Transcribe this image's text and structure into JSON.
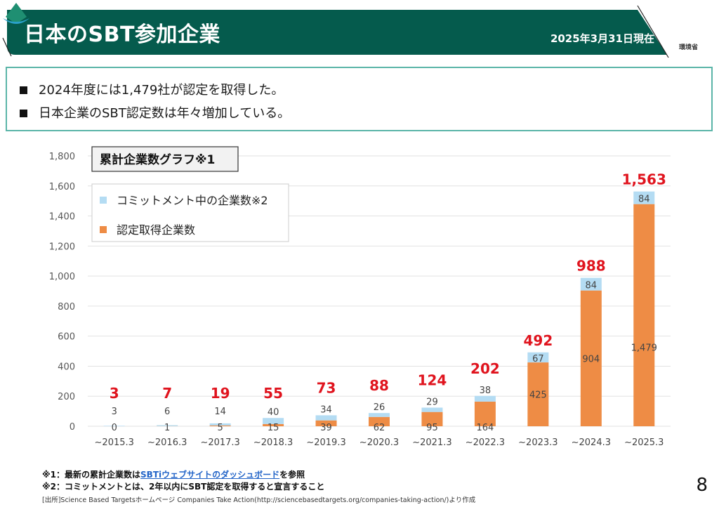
{
  "header": {
    "title": "日本のSBT参加企業",
    "as_of_date": "2025年3月31日現在",
    "logo_text": "環境省",
    "banner_color": "#055b4d"
  },
  "summary": {
    "bullets": [
      "2024年度には1,479社が認定を取得した。",
      "日本企業のSBT認定数は年々増加している。"
    ]
  },
  "chart_data": {
    "type": "bar",
    "stacked": true,
    "title": "累計企業数グラフ※1",
    "xlabel": "",
    "ylabel": "",
    "ylim": [
      0,
      1800
    ],
    "yticks": [
      0,
      200,
      400,
      600,
      800,
      1000,
      1200,
      1400,
      1600,
      1800
    ],
    "ytick_labels": [
      "0",
      "200",
      "400",
      "600",
      "800",
      "1,000",
      "1,200",
      "1,400",
      "1,600",
      "1,800"
    ],
    "grid": true,
    "legend_position": "top-left",
    "categories": [
      "~2015.3",
      "~2016.3",
      "~2017.3",
      "~2018.3",
      "~2019.3",
      "~2020.3",
      "~2021.3",
      "~2022.3",
      "~2023.3",
      "~2024.3",
      "~2025.3"
    ],
    "series": [
      {
        "name": "認定取得企業数",
        "color": "#ee8c45",
        "values": [
          0,
          1,
          5,
          15,
          39,
          62,
          95,
          164,
          425,
          904,
          1479
        ],
        "labels": [
          "0",
          "1",
          "5",
          "15",
          "39",
          "62",
          "95",
          "164",
          "425",
          "904",
          "1,479"
        ]
      },
      {
        "name": "コミットメント中の企業数※2",
        "color": "#b4dcf3",
        "values": [
          3,
          6,
          14,
          40,
          34,
          26,
          29,
          38,
          67,
          84,
          84
        ],
        "labels": [
          "3",
          "6",
          "14",
          "40",
          "34",
          "26",
          "29",
          "38",
          "67",
          "84",
          "84"
        ]
      }
    ],
    "totals": [
      3,
      7,
      19,
      55,
      73,
      88,
      124,
      202,
      492,
      988,
      1563
    ],
    "total_labels": [
      "3",
      "7",
      "19",
      "55",
      "73",
      "88",
      "124",
      "202",
      "492",
      "988",
      "1,563"
    ],
    "total_label_color": "#e0141e",
    "legend": [
      "コミットメント中の企業数※2",
      "認定取得企業数"
    ]
  },
  "footnotes": {
    "note1_prefix": "※1：最新の累計企業数は",
    "note1_link": "SBTiウェブサイトのダッシュボード",
    "note1_suffix": "を参照",
    "note2": "※2：コミットメントとは、2年以内にSBT認定を取得すると宣言すること",
    "source": "[出所]Science Based Targetsホームページ  Companies Take Action(http://sciencebasedtargets.org/companies-taking-action/)より作成"
  },
  "page_number": "8"
}
